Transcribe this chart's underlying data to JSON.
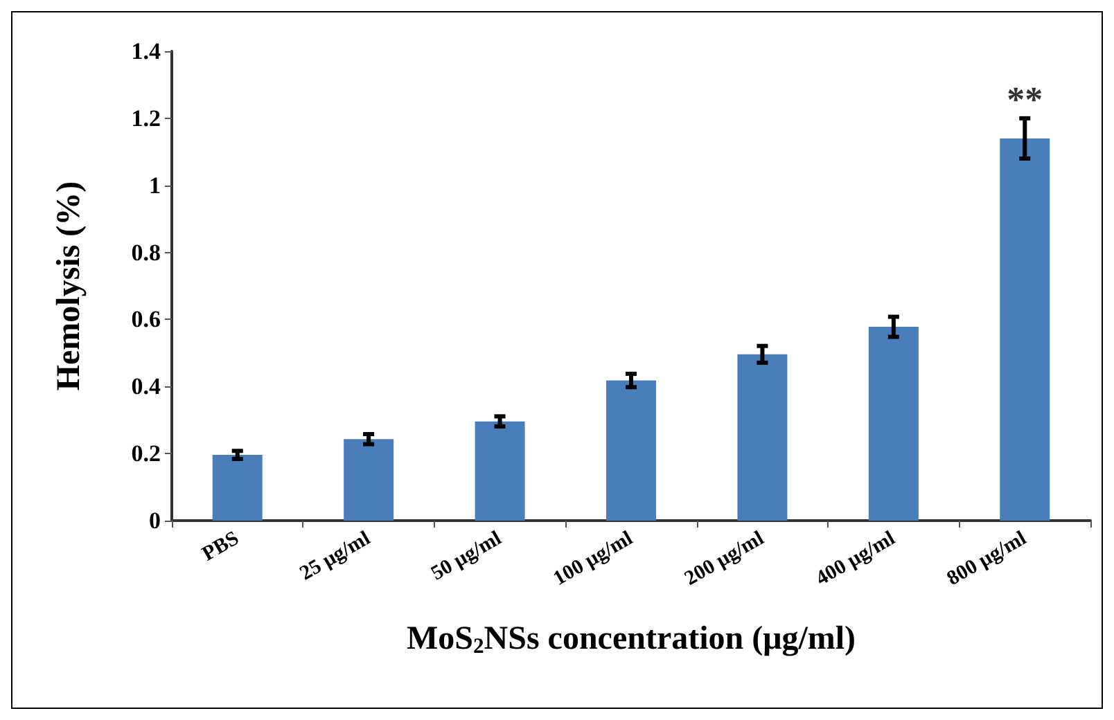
{
  "chart_data": {
    "type": "bar",
    "xlabel": "MoS$_{2}$NSs concentration (μg/ml)",
    "ylabel": "Hemolysis (%)",
    "categories": [
      "PBS",
      "25 μg/ml",
      "50 μg/ml",
      "100 μg/ml",
      "200 μg/ml",
      "400 μg/ml",
      "800 μg/ml"
    ],
    "values": [
      0.196,
      0.243,
      0.296,
      0.418,
      0.496,
      0.578,
      1.14
    ],
    "errors": [
      0.012,
      0.015,
      0.015,
      0.02,
      0.025,
      0.03,
      0.06
    ],
    "color": "#4a7ebb",
    "ylim": [
      0,
      1.4
    ],
    "yticks": [
      0,
      0.2,
      0.4,
      0.6,
      0.8,
      1,
      1.2,
      1.4
    ],
    "grid": false,
    "annotations": [
      {
        "text": "**",
        "x": "800 μg/ml",
        "y": 1.2
      }
    ]
  }
}
